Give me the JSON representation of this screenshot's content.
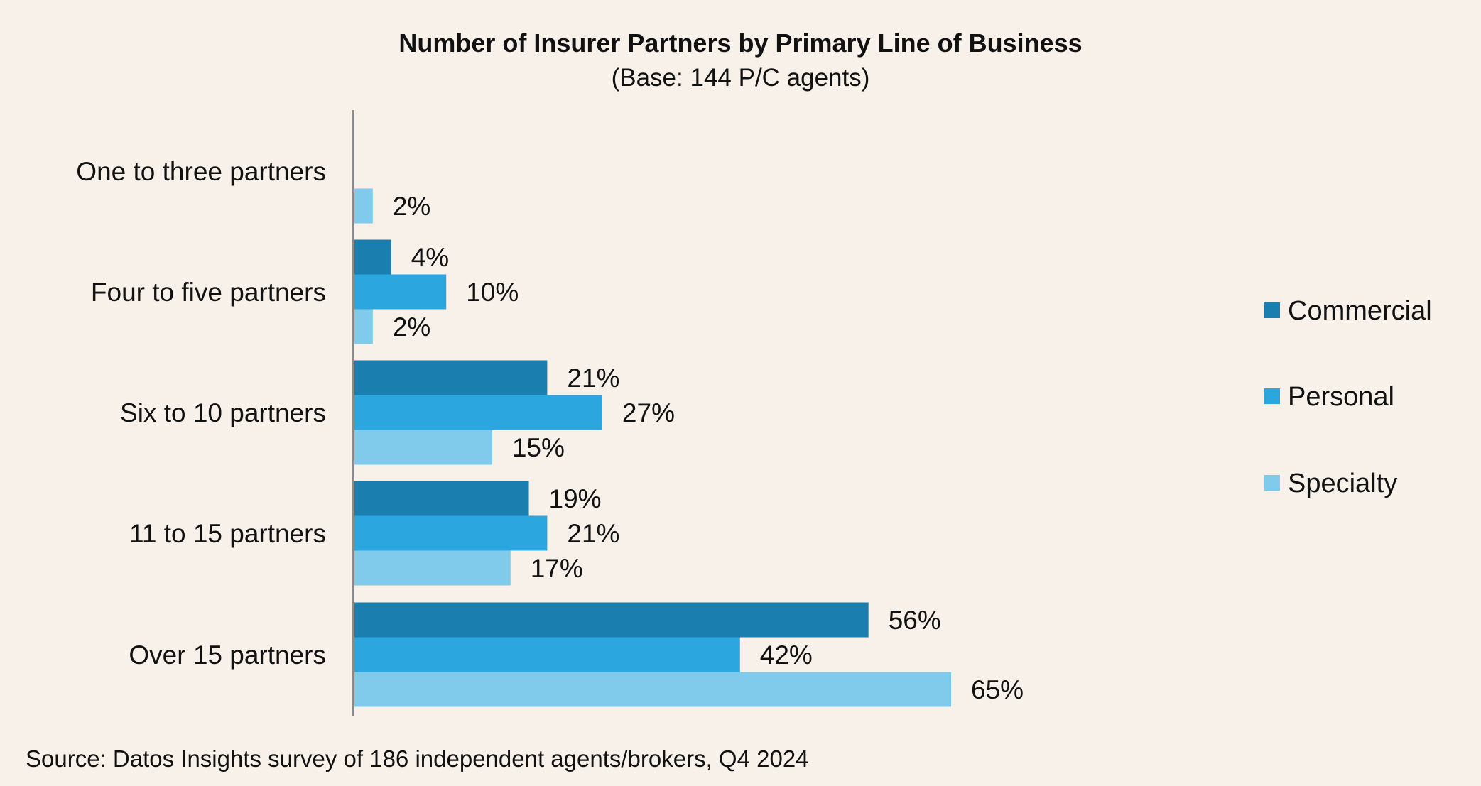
{
  "chart_data": {
    "type": "bar",
    "orientation": "horizontal",
    "title": "Number of Insurer Partners by Primary Line of Business",
    "subtitle": "(Base: 144 P/C agents)",
    "source": "Source: Datos Insights survey of 186 independent agents/brokers, Q4 2024",
    "categories": [
      "One to three partners",
      "Four to five partners",
      "Six to 10 partners",
      "11 to 15 partners",
      "Over 15 partners"
    ],
    "series": [
      {
        "name": "Commercial",
        "color": "#1a7fae",
        "values": [
          null,
          4,
          21,
          19,
          56
        ]
      },
      {
        "name": "Personal",
        "color": "#2ca6de",
        "values": [
          null,
          10,
          27,
          21,
          42
        ]
      },
      {
        "name": "Specialty",
        "color": "#80cbeb",
        "values": [
          2,
          2,
          15,
          17,
          65
        ]
      }
    ],
    "value_suffix": "%",
    "xlim": [
      0,
      65
    ],
    "grid": false,
    "legend_position": "right"
  }
}
